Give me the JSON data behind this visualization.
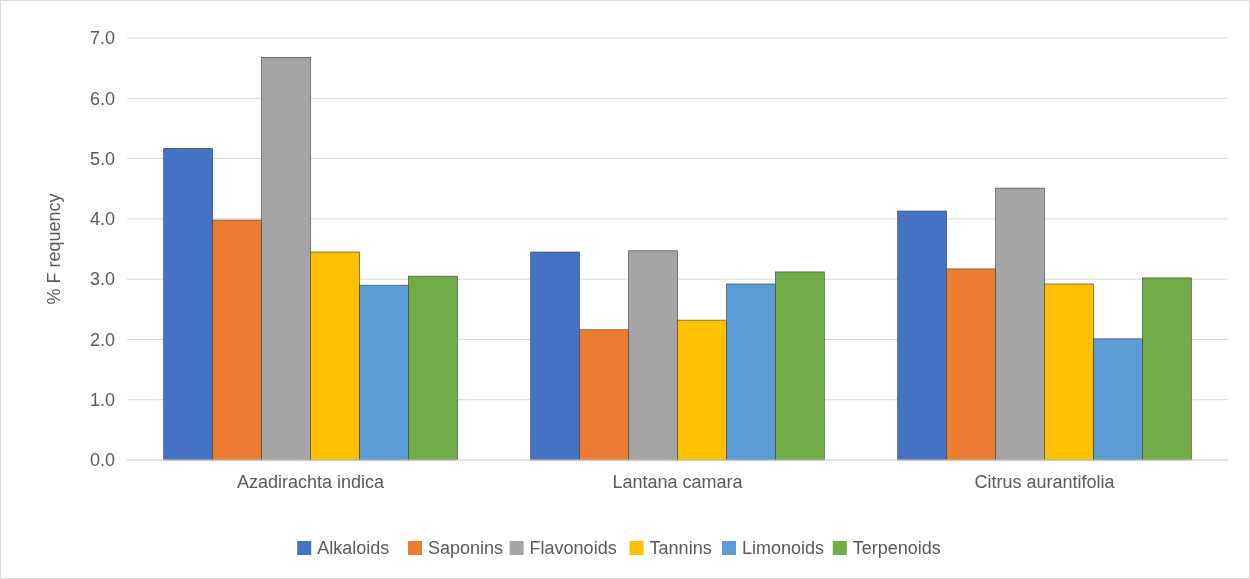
{
  "chart_data": {
    "type": "bar",
    "ylabel": "% F requency",
    "categories": [
      "Azadirachta indica",
      "Lantana camara",
      "Citrus aurantifolia"
    ],
    "series": [
      {
        "name": "Alkaloids",
        "color": "#4472c4",
        "values": [
          5.17,
          3.45,
          4.13
        ]
      },
      {
        "name": "Saponins",
        "color": "#ed7d31",
        "values": [
          3.98,
          2.16,
          3.17
        ]
      },
      {
        "name": "Flavonoids",
        "color": "#a5a5a5",
        "values": [
          6.68,
          3.47,
          4.51
        ]
      },
      {
        "name": "Tannins",
        "color": "#ffc000",
        "values": [
          3.45,
          2.32,
          2.92
        ]
      },
      {
        "name": "Limonoids",
        "color": "#5b9bd5",
        "values": [
          2.9,
          2.92,
          2.01
        ]
      },
      {
        "name": "Terpenoids",
        "color": "#70ad47",
        "values": [
          3.05,
          3.12,
          3.02
        ]
      }
    ],
    "ylim": [
      0,
      7
    ],
    "yticks": [
      {
        "value": 0,
        "label": "0.0"
      },
      {
        "value": 1,
        "label": "1.0"
      },
      {
        "value": 2,
        "label": "2.0"
      },
      {
        "value": 3,
        "label": "3.0"
      },
      {
        "value": 4,
        "label": "4.0"
      },
      {
        "value": 5,
        "label": "5.0"
      },
      {
        "value": 6,
        "label": "6.0"
      },
      {
        "value": 7,
        "label": "7.0"
      }
    ],
    "grid": "y",
    "legend": "bottom"
  }
}
